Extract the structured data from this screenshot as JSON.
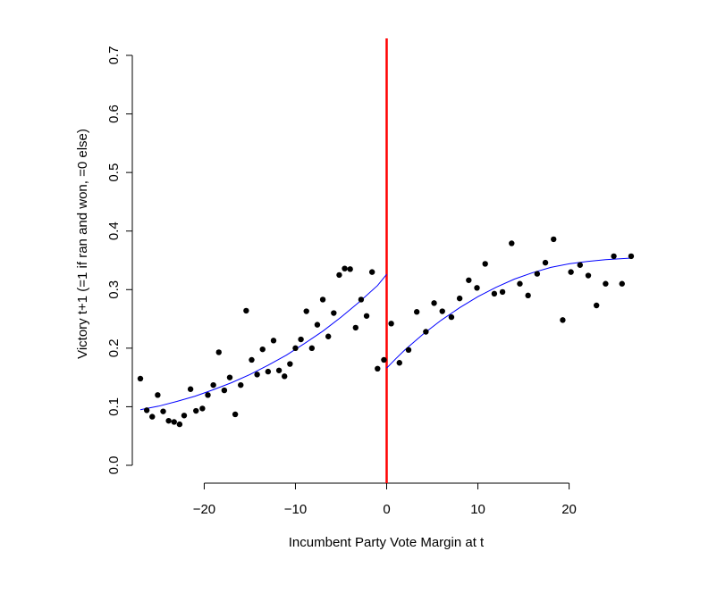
{
  "chart_data": {
    "type": "scatter",
    "title": "",
    "xlabel": "Incumbent Party Vote Margin at t",
    "ylabel": "Victory t+1 (=1 if ran and won, =0 else)",
    "xlim": [
      -27,
      27
    ],
    "ylim": [
      0,
      0.7
    ],
    "xticks": [
      -20,
      -10,
      0,
      10,
      20
    ],
    "xtick_labels": [
      "−20",
      "−10",
      "0",
      "10",
      "20"
    ],
    "yticks": [
      0.0,
      0.1,
      0.2,
      0.3,
      0.4,
      0.5,
      0.6,
      0.7
    ],
    "ytick_labels": [
      "0.0",
      "0.1",
      "0.2",
      "0.3",
      "0.4",
      "0.5",
      "0.6",
      "0.7"
    ],
    "grid": false,
    "threshold": {
      "x": 0,
      "color": "#ff0000"
    },
    "points": {
      "color": "#000000",
      "x": [
        -27,
        -26.3,
        -25.7,
        -25.1,
        -24.5,
        -23.9,
        -23.3,
        -22.7,
        -22.2,
        -21.5,
        -20.9,
        -20.2,
        -19.6,
        -19.0,
        -18.4,
        -17.8,
        -17.2,
        -16.6,
        -16.0,
        -15.4,
        -14.8,
        -14.2,
        -13.6,
        -13.0,
        -12.4,
        -11.8,
        -11.2,
        -10.6,
        -10.0,
        -9.4,
        -8.8,
        -8.2,
        -7.6,
        -7.0,
        -6.4,
        -5.8,
        -5.2,
        -4.6,
        -4.0,
        -3.4,
        -2.8,
        -2.2,
        -1.6,
        -1.0,
        -0.3,
        0.5,
        1.4,
        2.4,
        3.3,
        4.3,
        5.2,
        6.1,
        7.1,
        8.0,
        9.0,
        9.9,
        10.8,
        11.8,
        12.7,
        13.7,
        14.6,
        15.5,
        16.5,
        17.4,
        18.3,
        19.3,
        20.2,
        21.2,
        22.1,
        23.0,
        24.0,
        24.9,
        25.8,
        26.8
      ],
      "y": [
        0.148,
        0.094,
        0.083,
        0.12,
        0.092,
        0.076,
        0.074,
        0.07,
        0.085,
        0.13,
        0.093,
        0.097,
        0.12,
        0.137,
        0.193,
        0.128,
        0.15,
        0.087,
        0.137,
        0.264,
        0.18,
        0.155,
        0.198,
        0.16,
        0.213,
        0.162,
        0.152,
        0.173,
        0.2,
        0.215,
        0.263,
        0.2,
        0.24,
        0.283,
        0.22,
        0.26,
        0.325,
        0.336,
        0.335,
        0.235,
        0.283,
        0.255,
        0.33,
        0.165,
        0.18,
        0.242,
        0.175,
        0.197,
        0.262,
        0.228,
        0.277,
        0.263,
        0.253,
        0.285,
        0.316,
        0.303,
        0.344,
        0.293,
        0.296,
        0.379,
        0.31,
        0.29,
        0.327,
        0.346,
        0.386,
        0.248,
        0.33,
        0.342,
        0.324,
        0.273,
        0.31,
        0.357,
        0.31,
        0.357
      ]
    },
    "series": [
      {
        "side": "left",
        "color": "#0000ff",
        "x": [
          -27,
          -25,
          -23,
          -21,
          -19,
          -17,
          -15,
          -13,
          -11,
          -9,
          -7,
          -5,
          -3,
          -1,
          0
        ],
        "y": [
          0.095,
          0.101,
          0.109,
          0.118,
          0.129,
          0.141,
          0.155,
          0.171,
          0.188,
          0.208,
          0.229,
          0.253,
          0.279,
          0.307,
          0.326
        ]
      },
      {
        "side": "right",
        "color": "#0000ff",
        "x": [
          0,
          1,
          2,
          4,
          6,
          8,
          10,
          12,
          14,
          16,
          18,
          20,
          22,
          24,
          26,
          27
        ],
        "y": [
          0.166,
          0.182,
          0.197,
          0.224,
          0.248,
          0.269,
          0.288,
          0.304,
          0.318,
          0.329,
          0.338,
          0.344,
          0.348,
          0.351,
          0.353,
          0.354
        ]
      }
    ]
  }
}
